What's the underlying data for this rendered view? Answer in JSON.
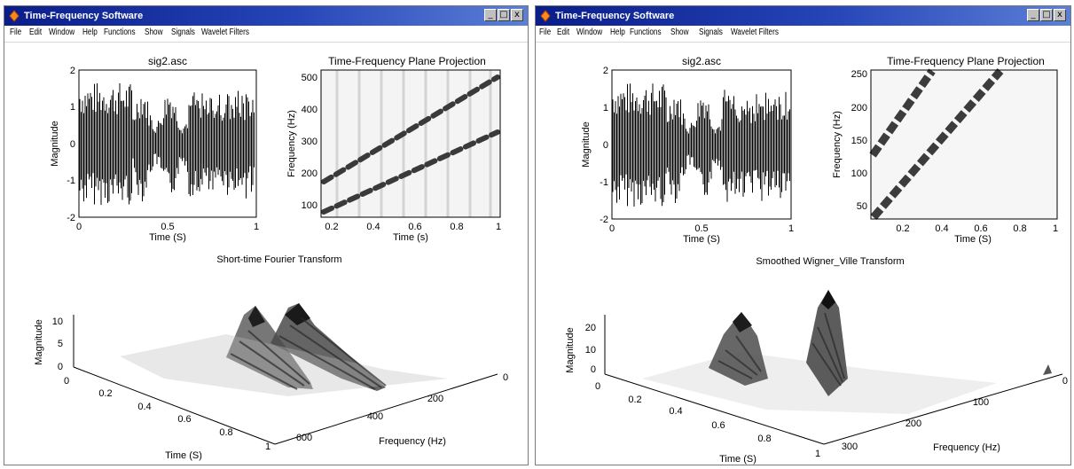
{
  "windows": [
    {
      "title": "Time-Frequency Software",
      "menu": [
        "File",
        "Edit",
        "Window",
        "Help",
        "Functions",
        "Show",
        "Signals",
        "Wavelet Filters"
      ],
      "signal_plot": {
        "title": "sig2.asc",
        "xlabel": "Time (S)",
        "ylabel": "Magnitude",
        "xticks": [
          "0",
          "0.5",
          "1"
        ],
        "yticks": [
          "2",
          "1",
          "0",
          "-1",
          "-2"
        ]
      },
      "tf_plot": {
        "title": "Time-Frequency Plane Projection",
        "xlabel": "Time (s)",
        "ylabel": "Frequency (Hz)",
        "xticks": [
          "0.2",
          "0.4",
          "0.6",
          "0.8",
          "1"
        ],
        "yticks": [
          "500",
          "400",
          "300",
          "200",
          "100"
        ]
      },
      "transform_title": "Short-time Fourier Transform",
      "surface_plot": {
        "zlabel": "Magnitude",
        "zticks": [
          "10",
          "5",
          "0"
        ],
        "time_label": "Time (S)",
        "time_ticks": [
          "0",
          "0.2",
          "0.4",
          "0.6",
          "0.8",
          "1"
        ],
        "freq_label": "Frequency (Hz)",
        "freq_ticks": [
          "0",
          "200",
          "400",
          "600"
        ]
      }
    },
    {
      "title": "Time-Frequency Software",
      "menu": [
        "File",
        "Edit",
        "Window",
        "Help",
        "Functions",
        "Show",
        "Signals",
        "Wavelet Filters"
      ],
      "signal_plot": {
        "title": "sig2.asc",
        "xlabel": "Time (S)",
        "ylabel": "Magnitude",
        "xticks": [
          "0",
          "0.5",
          "1"
        ],
        "yticks": [
          "2",
          "1",
          "0",
          "-1",
          "-2"
        ]
      },
      "tf_plot": {
        "title": "Time-Frequency Plane Projection",
        "xlabel": "Time (S)",
        "ylabel": "Frequency (Hz)",
        "xticks": [
          "0.2",
          "0.4",
          "0.6",
          "0.8",
          "1"
        ],
        "yticks": [
          "250",
          "200",
          "150",
          "100",
          "50"
        ]
      },
      "transform_title": "Smoothed Wigner_Ville Transform",
      "surface_plot": {
        "zlabel": "Magnitude",
        "zticks": [
          "20",
          "10",
          "0"
        ],
        "time_label": "Time (S)",
        "time_ticks": [
          "0",
          "0.2",
          "0.4",
          "0.6",
          "0.8",
          "1"
        ],
        "freq_label": "Frequency (Hz)",
        "freq_ticks": [
          "0",
          "100",
          "200",
          "300"
        ]
      }
    }
  ],
  "colors": {
    "titlebar": "#0a1d8a",
    "plot_ink": "#000000",
    "ridge": "#333333"
  }
}
